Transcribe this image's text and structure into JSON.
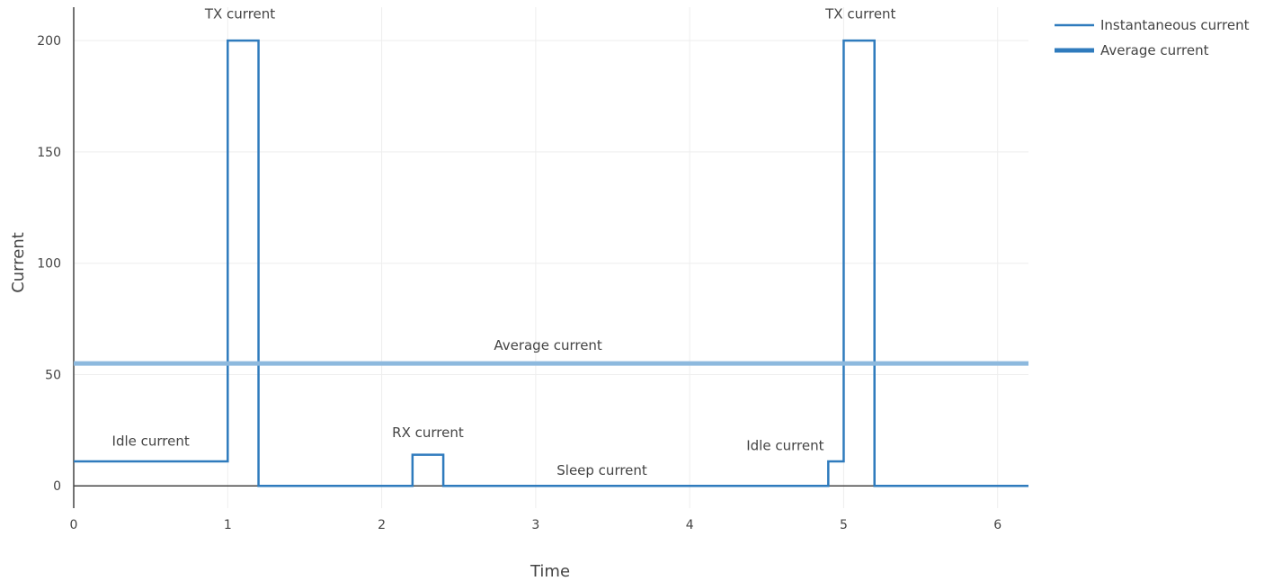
{
  "chart_data": {
    "type": "line",
    "title": "",
    "xlabel": "Time",
    "ylabel": "Current",
    "xlim": [
      0,
      6.2
    ],
    "ylim": [
      -10,
      215
    ],
    "xticks": [
      0,
      1,
      2,
      3,
      4,
      5,
      6
    ],
    "yticks": [
      0,
      50,
      100,
      150,
      200
    ],
    "grid": true,
    "legend_position": "top-right",
    "series": [
      {
        "name": "Instantaneous current",
        "color": "#2f7bbd",
        "shape": "step",
        "x": [
          0,
          1,
          1,
          1.2,
          1.2,
          2.2,
          2.2,
          2.4,
          2.4,
          4.9,
          4.9,
          5,
          5,
          5.2,
          5.2,
          6.2
        ],
        "y": [
          11,
          11,
          200,
          200,
          0,
          0,
          14,
          14,
          0,
          0,
          11,
          11,
          200,
          200,
          0,
          0
        ]
      },
      {
        "name": "Average current",
        "color": "#8db9de",
        "shape": "line",
        "x": [
          0,
          6.2
        ],
        "y": [
          55,
          55
        ]
      }
    ],
    "annotations": [
      {
        "text": "TX current",
        "x": 1.08,
        "y": 210
      },
      {
        "text": "TX current",
        "x": 5.11,
        "y": 210
      },
      {
        "text": "Average current",
        "x": 3.08,
        "y": 61
      },
      {
        "text": "Idle current",
        "x": 0.5,
        "y": 18
      },
      {
        "text": "RX current",
        "x": 2.3,
        "y": 22
      },
      {
        "text": "Idle current",
        "x": 4.62,
        "y": 16
      },
      {
        "text": "Sleep current",
        "x": 3.43,
        "y": 5
      }
    ]
  }
}
